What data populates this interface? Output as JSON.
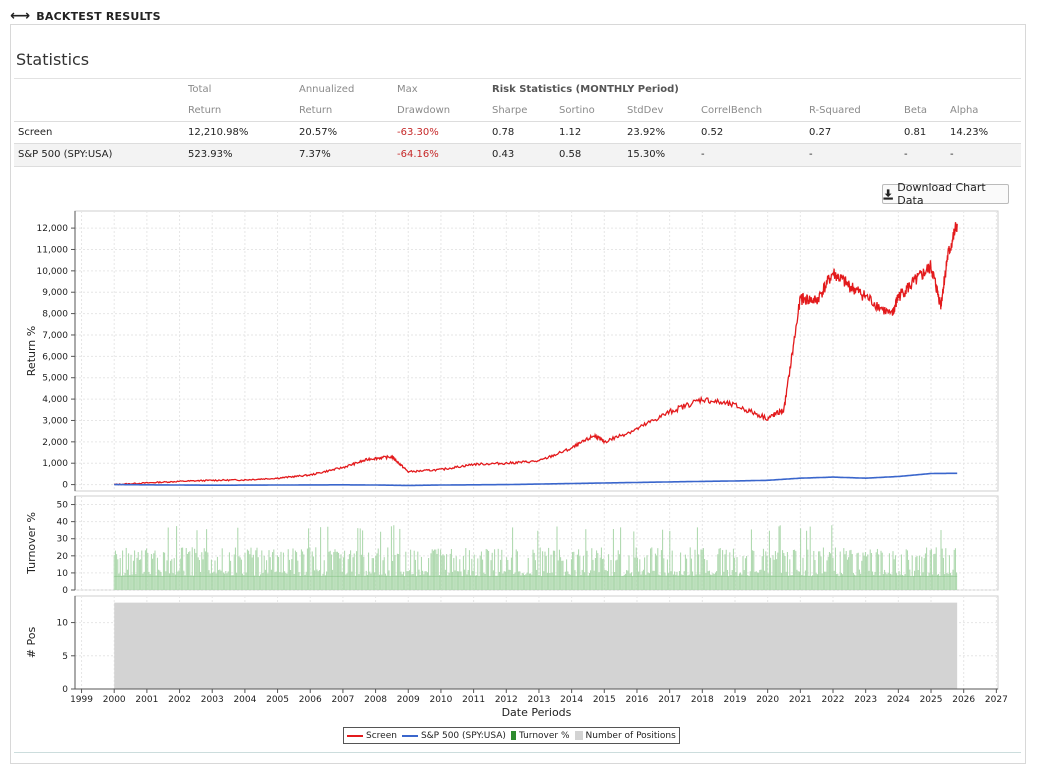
{
  "header": {
    "title": "BACKTEST RESULTS",
    "icon": "resize-horizontal-icon"
  },
  "stats": {
    "title": "Statistics",
    "headers": {
      "total1": "Total",
      "total2": "Return",
      "ann1": "Annualized",
      "ann2": "Return",
      "dd1": "Max",
      "dd2": "Drawdown",
      "risk": "Risk Statistics (MONTHLY Period)",
      "sharpe": "Sharpe",
      "sortino": "Sortino",
      "stddev": "StdDev",
      "correl": "CorrelBench",
      "rsq": "R-Squared",
      "beta": "Beta",
      "alpha": "Alpha"
    },
    "rows": [
      {
        "name": "Screen",
        "total": "12,210.98%",
        "annual": "20.57%",
        "dd": "-63.30%",
        "sharpe": "0.78",
        "sortino": "1.12",
        "stddev": "23.92%",
        "correl": "0.52",
        "rsq": "0.27",
        "beta": "0.81",
        "alpha": "14.23%"
      },
      {
        "name": "S&P 500 (SPY:USA)",
        "total": "523.93%",
        "annual": "7.37%",
        "dd": "-64.16%",
        "sharpe": "0.43",
        "sortino": "0.58",
        "stddev": "15.30%",
        "correl": "-",
        "rsq": "-",
        "beta": "-",
        "alpha": "-"
      }
    ]
  },
  "download_button": {
    "label": "Download Chart Data",
    "icon": "download-icon"
  },
  "colors": {
    "screen": "#e31a1c",
    "sp500": "#3a66cc",
    "turnover": "#2e8b2e",
    "positions": "#d3d3d3",
    "negative": "#c62828"
  },
  "chart_data": [
    {
      "type": "line",
      "ylabel": "Return %",
      "ylim": [
        -300,
        12800
      ],
      "yticks": [
        "0",
        "1,000",
        "2,000",
        "3,000",
        "4,000",
        "5,000",
        "6,000",
        "7,000",
        "8,000",
        "9,000",
        "10,000",
        "11,000",
        "12,000"
      ],
      "grid": true,
      "series": [
        {
          "name": "Screen",
          "x": [
            2000,
            2001,
            2002,
            2003,
            2004,
            2005,
            2006,
            2007,
            2007.8,
            2008.5,
            2009,
            2010,
            2011,
            2012,
            2013,
            2014,
            2014.7,
            2015,
            2016,
            2017,
            2018,
            2019,
            2020,
            2020.5,
            2021,
            2021.5,
            2022,
            2022.5,
            2023,
            2023.8,
            2024,
            2024.5,
            2025,
            2025.3,
            2025.5,
            2025.8
          ],
          "y": [
            0,
            80,
            150,
            200,
            220,
            300,
            450,
            800,
            1200,
            1300,
            600,
            700,
            950,
            1000,
            1100,
            1700,
            2300,
            2000,
            2600,
            3400,
            4000,
            3700,
            3100,
            3500,
            8700,
            8600,
            9900,
            9300,
            8800,
            7900,
            8800,
            9500,
            10200,
            8400,
            10600,
            12200
          ]
        },
        {
          "name": "S&P 500 (SPY:USA)",
          "x": [
            2000,
            2002,
            2003,
            2005,
            2007,
            2008,
            2009,
            2010,
            2012,
            2014,
            2016,
            2018,
            2019,
            2020,
            2021,
            2022,
            2023,
            2024,
            2025,
            2025.8
          ],
          "y": [
            0,
            -20,
            -30,
            -20,
            -10,
            -20,
            -40,
            -20,
            0,
            50,
            100,
            150,
            170,
            200,
            300,
            350,
            300,
            380,
            520,
            530
          ]
        }
      ]
    },
    {
      "type": "bar",
      "ylabel": "Turnover %",
      "ylim": [
        0,
        55
      ],
      "yticks": [
        "0",
        "10",
        "20",
        "30",
        "40",
        "50"
      ],
      "series": [
        {
          "name": "Turnover %",
          "range": [
            2000,
            2025.8
          ],
          "typical": [
            8,
            25
          ],
          "peak": 38
        }
      ]
    },
    {
      "type": "area",
      "ylabel": "# Pos",
      "xlabel": "Date Periods",
      "ylim": [
        0,
        14
      ],
      "yticks": [
        "0",
        "5",
        "10"
      ],
      "xticks": [
        "1999",
        "2000",
        "2001",
        "2002",
        "2003",
        "2004",
        "2005",
        "2006",
        "2007",
        "2008",
        "2009",
        "2010",
        "2011",
        "2012",
        "2013",
        "2014",
        "2015",
        "2016",
        "2017",
        "2018",
        "2019",
        "2020",
        "2021",
        "2022",
        "2023",
        "2024",
        "2025",
        "2026",
        "2027"
      ],
      "series": [
        {
          "name": "Number of Positions",
          "x": [
            2000,
            2025.8
          ],
          "y": [
            13,
            13
          ]
        }
      ]
    }
  ],
  "legend": {
    "items": [
      "Screen",
      "S&P 500 (SPY:USA)",
      "Turnover %",
      "Number of Positions"
    ]
  }
}
